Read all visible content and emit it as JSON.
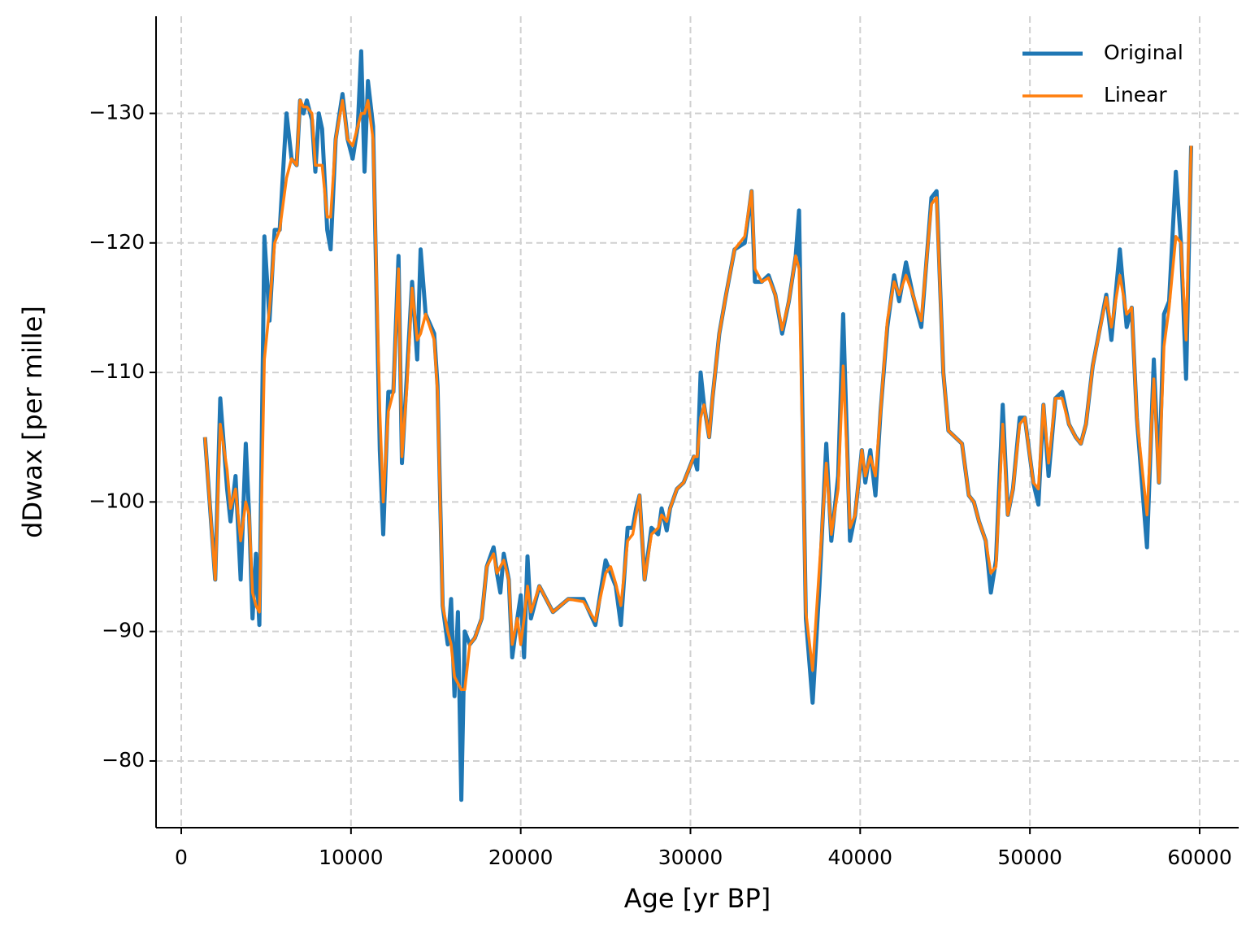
{
  "chart_data": {
    "type": "line",
    "xlabel": "Age [yr BP]",
    "ylabel": "dDwax [per mille]",
    "x": [
      1400,
      2000,
      2300,
      2700,
      2900,
      3200,
      3500,
      3800,
      4000,
      4200,
      4400,
      4600,
      4900,
      5200,
      5500,
      5800,
      6200,
      6500,
      6800,
      7000,
      7200,
      7400,
      7700,
      7900,
      8100,
      8300,
      8600,
      8800,
      9100,
      9500,
      9800,
      10100,
      10400,
      10600,
      10800,
      11000,
      11300,
      11700,
      11900,
      12200,
      12500,
      12800,
      13000,
      13300,
      13600,
      13900,
      14100,
      14400,
      14900,
      15100,
      15400,
      15700,
      15900,
      16100,
      16300,
      16500,
      16700,
      17000,
      17300,
      17700,
      18000,
      18400,
      18600,
      18800,
      19000,
      19300,
      19500,
      19800,
      20000,
      20200,
      20400,
      20600,
      21100,
      21900,
      22800,
      23700,
      24400,
      25000,
      25300,
      25600,
      25900,
      26300,
      26600,
      26800,
      27000,
      27300,
      27700,
      28100,
      28300,
      28600,
      28800,
      29200,
      29600,
      30200,
      30400,
      30600,
      30800,
      31100,
      31300,
      31700,
      32100,
      32600,
      33200,
      33600,
      33800,
      34200,
      34600,
      35000,
      35400,
      35800,
      36200,
      36400,
      36800,
      37200,
      37600,
      38000,
      38300,
      38700,
      39000,
      39400,
      39700,
      40100,
      40300,
      40600,
      40900,
      41200,
      41600,
      42000,
      42300,
      42700,
      43100,
      43600,
      44200,
      44500,
      44900,
      45200,
      46000,
      46400,
      46700,
      47000,
      47400,
      47700,
      48000,
      48400,
      48700,
      49000,
      49400,
      49700,
      50200,
      50500,
      50800,
      51100,
      51500,
      51900,
      52300,
      52700,
      53000,
      53300,
      53700,
      54500,
      54800,
      55300,
      55700,
      56000,
      56300,
      56900,
      57300,
      57600,
      57900,
      58200,
      58600,
      58900,
      59200,
      59500
    ],
    "series": [
      {
        "name": "Original",
        "color": "#1f77b4",
        "values": [
          -105,
          -94,
          -108,
          -101,
          -98.5,
          -102,
          -94,
          -104.5,
          -99,
          -91,
          -96,
          -90.5,
          -120.5,
          -114,
          -121,
          -121,
          -130,
          -126.5,
          -126,
          -131,
          -130,
          -131,
          -129.5,
          -125.5,
          -130,
          -128.8,
          -121,
          -119.5,
          -128,
          -131.5,
          -128,
          -126.5,
          -129,
          -134.8,
          -125.5,
          -132.5,
          -129,
          -104,
          -97.5,
          -108.5,
          -108.5,
          -119,
          -103,
          -110,
          -117,
          -111,
          -119.5,
          -114.5,
          -113,
          -109,
          -92,
          -89,
          -92.5,
          -85,
          -91.5,
          -77,
          -90,
          -89,
          -89.5,
          -91,
          -95,
          -96.5,
          -94.5,
          -93,
          -96,
          -94,
          -88,
          -91,
          -92.8,
          -88,
          -95.8,
          -91,
          -93.5,
          -91.5,
          -92.5,
          -92.5,
          -90.5,
          -95.5,
          -94.5,
          -93.5,
          -90.5,
          -98,
          -98,
          -99.5,
          -100.5,
          -94,
          -98,
          -97.5,
          -99.5,
          -97.8,
          -99.5,
          -101,
          -101.5,
          -103.5,
          -102.5,
          -110,
          -107.5,
          -105,
          -108,
          -113,
          -116,
          -119.5,
          -120,
          -124,
          -117,
          -117,
          -117.5,
          -116,
          -113,
          -115.5,
          -119,
          -122.5,
          -91,
          -84.5,
          -93.5,
          -104.5,
          -97,
          -102,
          -114.5,
          -97,
          -99,
          -104,
          -101.5,
          -104,
          -100.5,
          -107,
          -113.5,
          -117.5,
          -115.5,
          -118.5,
          -116,
          -113.5,
          -123.5,
          -124,
          -110,
          -105.5,
          -104.5,
          -100.5,
          -100,
          -98.5,
          -97,
          -93,
          -95.5,
          -107.5,
          -99,
          -101,
          -106.5,
          -106.5,
          -101.5,
          -99.8,
          -107.5,
          -102,
          -108,
          -108.5,
          -106,
          -105,
          -104.5,
          -106,
          -110.5,
          -116,
          -112.5,
          -119.5,
          -113.5,
          -115,
          -106.5,
          -96.5,
          -111,
          -101.5,
          -114.5,
          -115.5,
          -125.5,
          -120,
          -109.5,
          -127.5
        ]
      },
      {
        "name": "Linear",
        "color": "#ff7f0e",
        "values": [
          -105,
          -94,
          -106,
          -102.5,
          -99.5,
          -101,
          -97,
          -100,
          -99,
          -93,
          -92,
          -91.5,
          -111,
          -115,
          -120,
          -121,
          -125,
          -126.5,
          -126,
          -131,
          -130.5,
          -130.5,
          -130,
          -126,
          -126,
          -126,
          -122,
          -122,
          -128,
          -131,
          -128,
          -127.5,
          -129,
          -130,
          -130,
          -131,
          -128,
          -107,
          -100,
          -107,
          -108.5,
          -118,
          -103.5,
          -109,
          -116.5,
          -112.5,
          -113,
          -114.5,
          -112.5,
          -108.5,
          -92,
          -90,
          -89,
          -86.5,
          -86,
          -85.5,
          -85.5,
          -89,
          -89.5,
          -91,
          -95,
          -96,
          -94.5,
          -95,
          -95.5,
          -94,
          -89,
          -91,
          -89,
          -91,
          -93.5,
          -91.5,
          -93.5,
          -91.5,
          -92.5,
          -92.3,
          -90.8,
          -94.5,
          -95,
          -93.7,
          -92,
          -97,
          -97.5,
          -99,
          -100.5,
          -94,
          -97.5,
          -98,
          -99,
          -98.5,
          -99.5,
          -101,
          -101.5,
          -103.5,
          -103.5,
          -106.5,
          -107.5,
          -105,
          -108,
          -113,
          -116,
          -119.5,
          -120.5,
          -124,
          -118,
          -117,
          -117.3,
          -116,
          -113.3,
          -115.5,
          -119,
          -118,
          -91.5,
          -87,
          -95,
          -103,
          -97.5,
          -101,
          -110.5,
          -98,
          -99,
          -104,
          -102,
          -103.5,
          -102,
          -107,
          -114,
          -117,
          -116,
          -117.5,
          -116,
          -114,
          -123,
          -123.5,
          -110,
          -105.5,
          -104.5,
          -100.5,
          -100,
          -98.5,
          -97,
          -94.5,
          -95,
          -106,
          -99,
          -101,
          -106,
          -106.5,
          -101.5,
          -101,
          -107.5,
          -103,
          -108,
          -108,
          -106,
          -105,
          -104.5,
          -106,
          -110.5,
          -115.8,
          -113.5,
          -117.5,
          -114.5,
          -115,
          -106.5,
          -99,
          -109.5,
          -101.5,
          -112,
          -115,
          -120.5,
          -120,
          -112.5,
          -127.5
        ]
      }
    ],
    "xlim": [
      -1485,
      62300
    ],
    "ylim": [
      -74.85,
      -137.5
    ],
    "xticks": [
      0,
      10000,
      20000,
      30000,
      40000,
      50000,
      60000
    ],
    "yticks": [
      {
        "value": -130,
        "label": "−130"
      },
      {
        "value": -120,
        "label": "−120"
      },
      {
        "value": -110,
        "label": "−110"
      },
      {
        "value": -100,
        "label": "−100"
      },
      {
        "value": -90,
        "label": "−90"
      },
      {
        "value": -80,
        "label": "−80"
      }
    ],
    "grid": true,
    "legend": "upper right"
  }
}
